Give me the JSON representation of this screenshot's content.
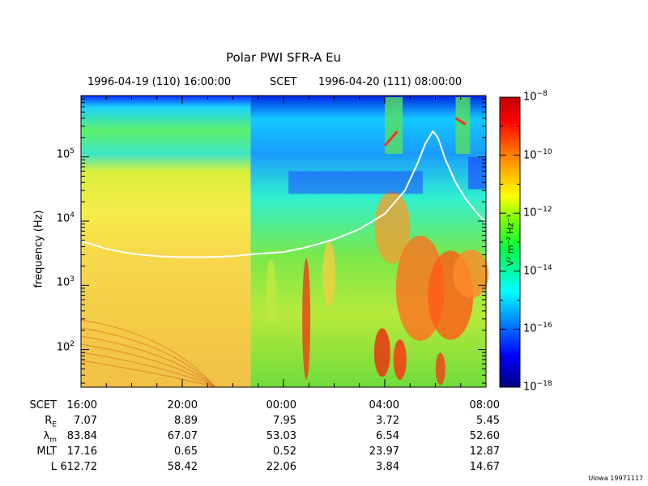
{
  "chart_data": {
    "type": "heatmap",
    "title": "Polar PWI SFR-A Eu",
    "header": {
      "start": "1996-04-19 (110) 16:00:00",
      "mid": "SCET",
      "end": "1996-04-20 (111) 08:00:00"
    },
    "ylabel": "frequency (Hz)",
    "yscale": "log",
    "ylim_hz": [
      26,
      900000
    ],
    "yticks": [
      {
        "base": "10",
        "exp": "2",
        "value": 100
      },
      {
        "base": "10",
        "exp": "3",
        "value": 1000
      },
      {
        "base": "10",
        "exp": "4",
        "value": 10000
      },
      {
        "base": "10",
        "exp": "5",
        "value": 100000
      }
    ],
    "xlabel": "SCET",
    "xlim_hours": [
      16,
      32
    ],
    "xticks": [
      "16:00",
      "20:00",
      "00:00",
      "04:00",
      "08:00"
    ],
    "colorbar": {
      "label": "V² m⁻² Hz⁻¹",
      "scale": "log",
      "range": [
        1e-18,
        1e-08
      ],
      "ticks": [
        {
          "base": "10",
          "exp": "−8",
          "value": 1e-08
        },
        {
          "base": "10",
          "exp": "−10",
          "value": 1e-10
        },
        {
          "base": "10",
          "exp": "−12",
          "value": 1e-12
        },
        {
          "base": "10",
          "exp": "−14",
          "value": 1e-14
        },
        {
          "base": "10",
          "exp": "−16",
          "value": 1e-16
        },
        {
          "base": "10",
          "exp": "−18",
          "value": 1e-18
        }
      ]
    },
    "overlay_line": {
      "color": "#ffffff",
      "points": [
        [
          16.0,
          4900
        ],
        [
          17.0,
          3700
        ],
        [
          18.0,
          3100
        ],
        [
          19.0,
          2850
        ],
        [
          20.0,
          2750
        ],
        [
          21.0,
          2750
        ],
        [
          22.0,
          2850
        ],
        [
          23.0,
          3100
        ],
        [
          24.0,
          3300
        ],
        [
          25.0,
          4000
        ],
        [
          26.0,
          5200
        ],
        [
          27.0,
          7500
        ],
        [
          28.0,
          13000
        ],
        [
          28.8,
          30000
        ],
        [
          29.3,
          80000
        ],
        [
          29.6,
          160000
        ],
        [
          29.9,
          250000
        ],
        [
          30.1,
          200000
        ],
        [
          30.4,
          90000
        ],
        [
          30.8,
          40000
        ],
        [
          31.2,
          22000
        ],
        [
          31.6,
          14000
        ],
        [
          32.0,
          9500
        ]
      ]
    },
    "table": {
      "rows": [
        {
          "label": "SCET",
          "values": [
            "16:00",
            "20:00",
            "00:00",
            "04:00",
            "08:00"
          ]
        },
        {
          "label": "RE",
          "label_main": "R",
          "label_sub": "E",
          "values": [
            "7.07",
            "8.89",
            "7.95",
            "3.72",
            "5.45"
          ]
        },
        {
          "label": "λm",
          "label_main": "λ",
          "label_sub": "m",
          "values": [
            "83.84",
            "67.07",
            "53.03",
            "6.54",
            "52.60"
          ]
        },
        {
          "label": "MLT",
          "values": [
            "17.16",
            "0.65",
            "0.52",
            "23.97",
            "12.87"
          ]
        },
        {
          "label": "L",
          "values": [
            "612.72",
            "58.42",
            "22.06",
            "3.84",
            "14.67"
          ]
        }
      ]
    }
  },
  "credit": "Ulowa 19971117"
}
